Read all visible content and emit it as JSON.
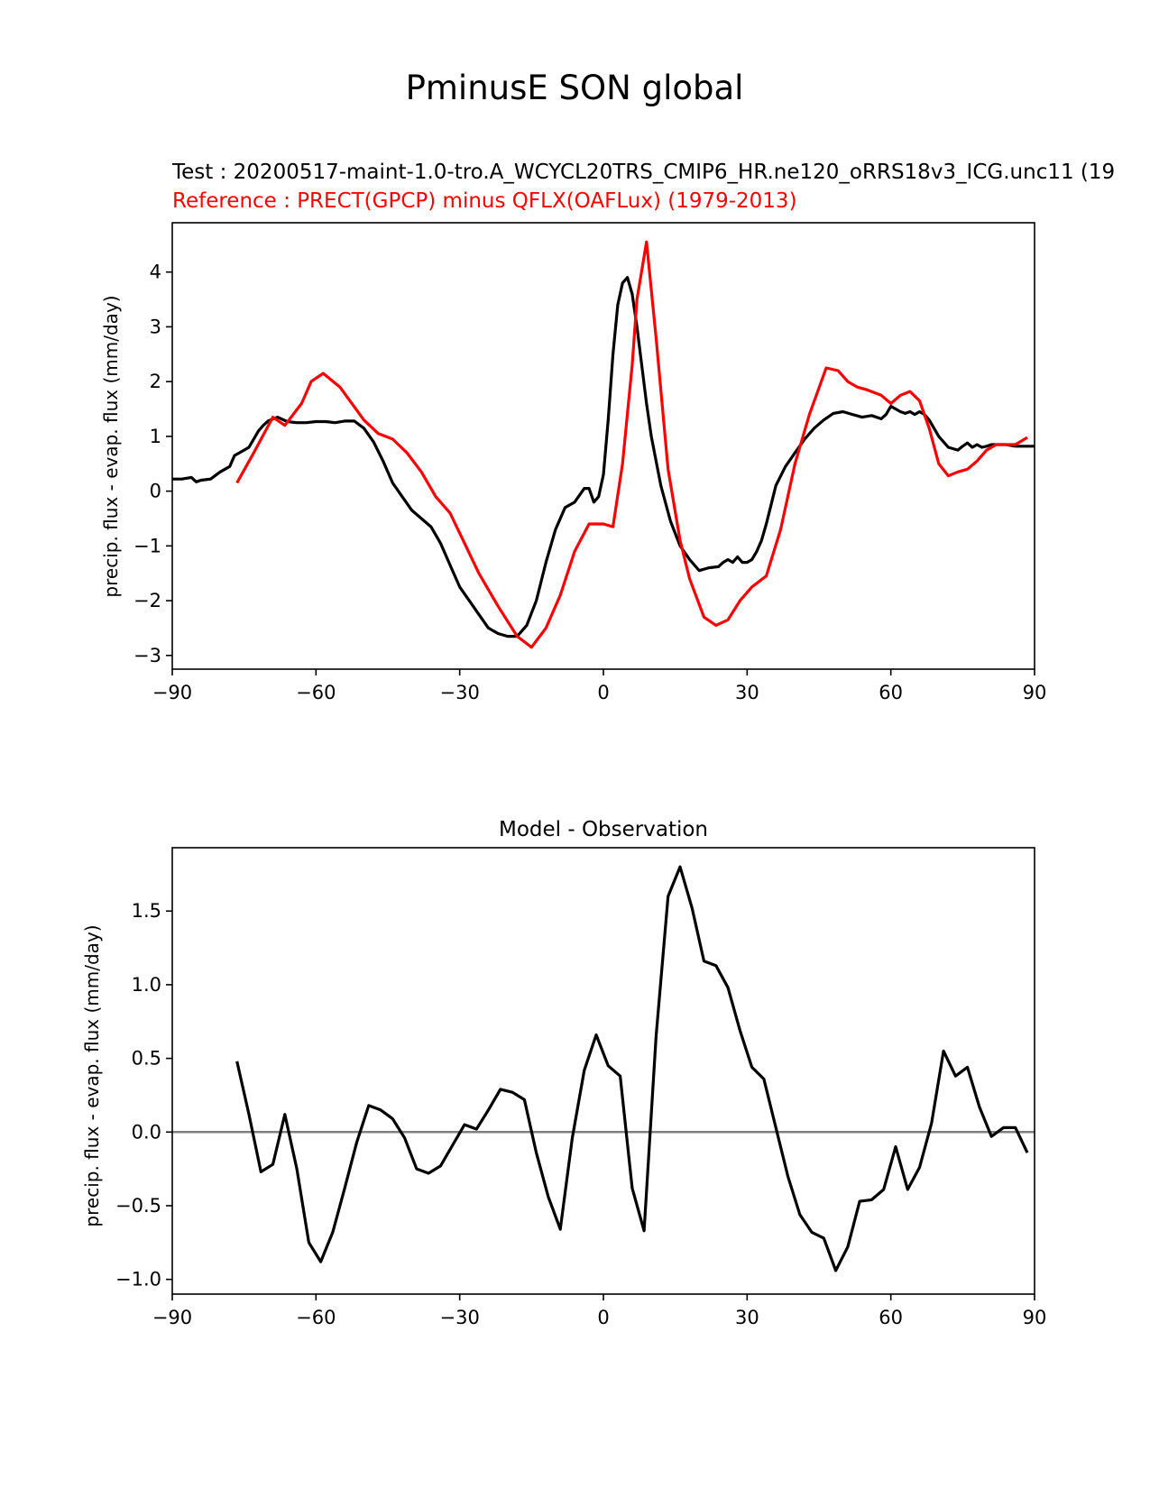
{
  "figure_title": "PminusE SON global",
  "chart_data": [
    {
      "type": "line",
      "title_test": "Test : 20200517-maint-1.0-tro.A_WCYCL20TRS_CMIP6_HR.ne120_oRRS18v3_ICG.unc11 (19",
      "title_ref": "Reference : PRECT(GPCP) minus QFLX(OAFLux) (1979-2013)",
      "xlabel": "",
      "ylabel": "precip. flux - evap. flux (mm/day)",
      "xlim": [
        -90,
        90
      ],
      "ylim": [
        -3.25,
        4.9
      ],
      "xticks": [
        -90,
        -60,
        -30,
        0,
        30,
        60,
        90
      ],
      "xtick_labels": [
        "−90",
        "−60",
        "−30",
        "0",
        "30",
        "60",
        "90"
      ],
      "yticks": [
        -3,
        -2,
        -1,
        0,
        1,
        2,
        3,
        4
      ],
      "ytick_labels": [
        "−3",
        "−2",
        "−1",
        "0",
        "1",
        "2",
        "3",
        "4"
      ],
      "series": [
        {
          "color": "#000000",
          "x": [
            -90,
            -88,
            -86,
            -85,
            -84,
            -82,
            -80,
            -78,
            -77,
            -76,
            -75,
            -74,
            -72,
            -71,
            -70,
            -68,
            -66,
            -64,
            -62,
            -60,
            -58,
            -56,
            -54,
            -52,
            -50,
            -48,
            -46,
            -44,
            -42,
            -40,
            -38,
            -36,
            -34,
            -32,
            -30,
            -28,
            -26,
            -24,
            -22,
            -20,
            -18,
            -16,
            -14,
            -12,
            -10,
            -8,
            -6,
            -4,
            -3,
            -2,
            -1,
            0,
            1,
            2,
            3,
            4,
            5,
            6,
            7,
            8,
            9,
            10,
            11,
            12,
            14,
            16,
            18,
            20,
            22,
            24,
            25,
            26,
            27,
            28,
            29,
            30,
            31,
            32,
            33,
            34,
            35,
            36,
            38,
            40,
            42,
            44,
            46,
            48,
            50,
            52,
            54,
            56,
            58,
            59,
            60,
            61,
            62,
            63,
            64,
            65,
            66,
            67,
            68,
            70,
            72,
            74,
            75,
            76,
            77,
            78,
            79,
            80,
            81,
            82,
            84,
            86,
            88,
            90
          ],
          "y": [
            0.22,
            0.22,
            0.25,
            0.17,
            0.2,
            0.22,
            0.35,
            0.45,
            0.65,
            0.7,
            0.75,
            0.8,
            1.1,
            1.2,
            1.28,
            1.35,
            1.27,
            1.25,
            1.25,
            1.27,
            1.27,
            1.25,
            1.28,
            1.28,
            1.15,
            0.9,
            0.55,
            0.15,
            -0.1,
            -0.35,
            -0.5,
            -0.65,
            -0.95,
            -1.35,
            -1.75,
            -2.0,
            -2.25,
            -2.5,
            -2.6,
            -2.65,
            -2.65,
            -2.45,
            -2.0,
            -1.3,
            -0.7,
            -0.3,
            -0.2,
            0.05,
            0.05,
            -0.2,
            -0.1,
            0.3,
            1.3,
            2.5,
            3.4,
            3.8,
            3.9,
            3.6,
            3.0,
            2.3,
            1.6,
            1.0,
            0.55,
            0.1,
            -0.55,
            -1.0,
            -1.25,
            -1.45,
            -1.4,
            -1.38,
            -1.3,
            -1.25,
            -1.3,
            -1.2,
            -1.3,
            -1.3,
            -1.25,
            -1.1,
            -0.9,
            -0.6,
            -0.25,
            0.1,
            0.45,
            0.7,
            0.95,
            1.15,
            1.3,
            1.42,
            1.45,
            1.4,
            1.35,
            1.38,
            1.32,
            1.4,
            1.55,
            1.5,
            1.45,
            1.42,
            1.45,
            1.4,
            1.45,
            1.4,
            1.3,
            1.0,
            0.8,
            0.75,
            0.82,
            0.88,
            0.8,
            0.85,
            0.8,
            0.82,
            0.85,
            0.85,
            0.85,
            0.82,
            0.82,
            0.82
          ]
        },
        {
          "color": "#ff0000",
          "x": [
            -76.5,
            -73,
            -69,
            -66.5,
            -63,
            -61,
            -58.5,
            -55,
            -50,
            -47,
            -44,
            -41,
            -38,
            -35,
            -32,
            -29,
            -26,
            -22,
            -18,
            -15,
            -12,
            -9,
            -6,
            -3,
            0,
            2,
            4,
            6,
            7,
            9,
            11,
            13.5,
            16,
            18,
            21,
            23.5,
            26,
            28.5,
            31,
            34,
            37,
            40,
            43,
            46.5,
            49,
            51,
            53,
            55,
            58,
            60,
            62,
            64,
            66,
            68,
            70,
            72,
            74,
            76,
            78,
            80,
            82,
            84,
            86,
            88.5
          ],
          "y": [
            0.15,
            0.7,
            1.35,
            1.2,
            1.6,
            2.0,
            2.15,
            1.9,
            1.3,
            1.05,
            0.95,
            0.7,
            0.35,
            -0.1,
            -0.4,
            -0.95,
            -1.5,
            -2.1,
            -2.65,
            -2.85,
            -2.5,
            -1.9,
            -1.1,
            -0.6,
            -0.6,
            -0.65,
            0.5,
            2.3,
            3.5,
            4.55,
            2.8,
            0.4,
            -0.9,
            -1.6,
            -2.3,
            -2.45,
            -2.35,
            -2.0,
            -1.75,
            -1.55,
            -0.7,
            0.5,
            1.4,
            2.25,
            2.2,
            2.0,
            1.9,
            1.85,
            1.75,
            1.6,
            1.75,
            1.82,
            1.65,
            1.15,
            0.5,
            0.28,
            0.35,
            0.4,
            0.55,
            0.75,
            0.85,
            0.85,
            0.85,
            0.98
          ]
        }
      ]
    },
    {
      "type": "line",
      "title": "Model - Observation",
      "xlabel": "",
      "ylabel": "precip. flux - evap. flux (mm/day)",
      "xlim": [
        -90,
        90
      ],
      "ylim": [
        -1.1,
        1.93
      ],
      "xticks": [
        -90,
        -60,
        -30,
        0,
        30,
        60,
        90
      ],
      "xtick_labels": [
        "−90",
        "−60",
        "−30",
        "0",
        "30",
        "60",
        "90"
      ],
      "yticks": [
        -1.0,
        -0.5,
        0.0,
        0.5,
        1.0,
        1.5
      ],
      "ytick_labels": [
        "−1.0",
        "−0.5",
        "0.0",
        "0.5",
        "1.0",
        "1.5"
      ],
      "zero_line": 0.0,
      "series": [
        {
          "color": "#000000",
          "x": [
            -76.5,
            -74,
            -71.5,
            -69,
            -66.5,
            -64,
            -61.5,
            -59,
            -56.5,
            -54,
            -51.5,
            -49,
            -46.5,
            -44,
            -41.5,
            -39,
            -36.5,
            -34,
            -31.5,
            -29,
            -26.5,
            -24,
            -21.5,
            -19,
            -16.5,
            -14,
            -11.5,
            -9,
            -6.5,
            -4,
            -1.5,
            1,
            3.5,
            6,
            8.5,
            11,
            13.5,
            16,
            18.5,
            21,
            23.5,
            26,
            28.5,
            31,
            33.5,
            36,
            38.5,
            41,
            43.5,
            46,
            48.5,
            51,
            53.5,
            56,
            58.5,
            61,
            63.5,
            66,
            68.5,
            71,
            73.5,
            76,
            78.5,
            81,
            83.5,
            86,
            88.5
          ],
          "y": [
            0.48,
            0.12,
            -0.27,
            -0.22,
            0.12,
            -0.25,
            -0.75,
            -0.88,
            -0.68,
            -0.38,
            -0.07,
            0.18,
            0.15,
            0.09,
            -0.04,
            -0.25,
            -0.28,
            -0.23,
            -0.09,
            0.05,
            0.02,
            0.15,
            0.29,
            0.27,
            0.22,
            -0.14,
            -0.44,
            -0.66,
            -0.04,
            0.42,
            0.66,
            0.45,
            0.38,
            -0.38,
            -0.67,
            0.65,
            1.6,
            1.8,
            1.52,
            1.16,
            1.13,
            0.98,
            0.69,
            0.44,
            0.36,
            0.03,
            -0.3,
            -0.56,
            -0.68,
            -0.72,
            -0.94,
            -0.78,
            -0.47,
            -0.46,
            -0.39,
            -0.1,
            -0.39,
            -0.24,
            0.06,
            0.55,
            0.38,
            0.44,
            0.17,
            -0.03,
            0.03,
            0.03,
            -0.14
          ]
        }
      ]
    }
  ]
}
